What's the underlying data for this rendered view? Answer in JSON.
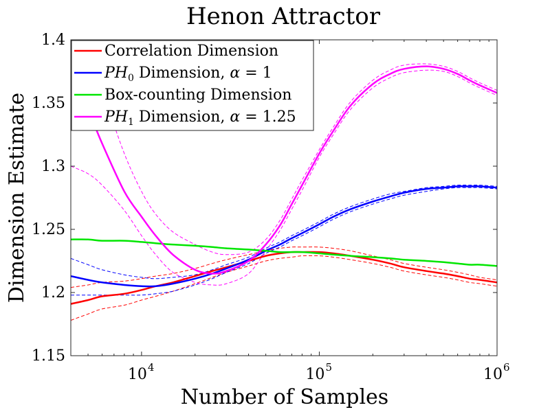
{
  "chart_data": {
    "type": "line",
    "title": "Henon Attractor",
    "xlabel": "Number of Samples",
    "ylabel": "Dimension Estimate",
    "xscale": "log",
    "xlim": [
      4000,
      1000000
    ],
    "ylim": [
      1.15,
      1.4
    ],
    "grid": false,
    "legend_position": "top-left",
    "x_ticks": [
      {
        "base": "10",
        "exp": "4",
        "value": 10000
      },
      {
        "base": "10",
        "exp": "5",
        "value": 100000
      },
      {
        "base": "10",
        "exp": "6",
        "value": 1000000
      }
    ],
    "y_ticks": [
      "1.15",
      "1.2",
      "1.25",
      "1.3",
      "1.35",
      "1.4"
    ],
    "y_tick_values": [
      1.15,
      1.2,
      1.25,
      1.3,
      1.35,
      1.4
    ],
    "x": [
      4000,
      5000,
      6000,
      8000,
      10000,
      12000,
      15000,
      20000,
      25000,
      30000,
      40000,
      50000,
      60000,
      70000,
      80000,
      100000,
      120000,
      150000,
      200000,
      250000,
      300000,
      400000,
      500000,
      600000,
      700000,
      800000,
      1000000
    ],
    "series": [
      {
        "name_parts": [
          "Correlation Dimension"
        ],
        "color": "#ff0000",
        "values": [
          1.191,
          1.194,
          1.197,
          1.199,
          1.202,
          1.205,
          1.208,
          1.213,
          1.217,
          1.22,
          1.225,
          1.229,
          1.231,
          1.232,
          1.232,
          1.232,
          1.231,
          1.229,
          1.226,
          1.223,
          1.22,
          1.217,
          1.215,
          1.213,
          1.211,
          1.21,
          1.208
        ],
        "upper": [
          1.204,
          1.206,
          1.208,
          1.209,
          1.211,
          1.213,
          1.215,
          1.219,
          1.223,
          1.226,
          1.23,
          1.233,
          1.235,
          1.236,
          1.236,
          1.236,
          1.235,
          1.233,
          1.229,
          1.226,
          1.223,
          1.22,
          1.218,
          1.216,
          1.214,
          1.212,
          1.21
        ],
        "lower": [
          1.178,
          1.183,
          1.187,
          1.19,
          1.194,
          1.197,
          1.201,
          1.207,
          1.212,
          1.216,
          1.221,
          1.225,
          1.227,
          1.228,
          1.229,
          1.229,
          1.228,
          1.226,
          1.223,
          1.22,
          1.217,
          1.214,
          1.212,
          1.21,
          1.208,
          1.207,
          1.205
        ]
      },
      {
        "name_parts": [
          "PH",
          "0",
          " Dimension, ",
          "α",
          " = 1"
        ],
        "color": "#0000ff",
        "values": [
          1.213,
          1.21,
          1.208,
          1.206,
          1.205,
          1.205,
          1.207,
          1.211,
          1.215,
          1.219,
          1.226,
          1.233,
          1.238,
          1.243,
          1.247,
          1.254,
          1.26,
          1.266,
          1.272,
          1.276,
          1.279,
          1.282,
          1.283,
          1.284,
          1.284,
          1.284,
          1.283
        ],
        "upper": [
          1.227,
          1.222,
          1.218,
          1.214,
          1.212,
          1.211,
          1.212,
          1.214,
          1.218,
          1.222,
          1.228,
          1.235,
          1.24,
          1.245,
          1.249,
          1.256,
          1.262,
          1.268,
          1.274,
          1.278,
          1.28,
          1.283,
          1.284,
          1.285,
          1.285,
          1.285,
          1.284
        ],
        "lower": [
          1.198,
          1.198,
          1.198,
          1.198,
          1.198,
          1.199,
          1.201,
          1.206,
          1.211,
          1.216,
          1.223,
          1.231,
          1.236,
          1.241,
          1.245,
          1.252,
          1.258,
          1.264,
          1.27,
          1.274,
          1.277,
          1.28,
          1.282,
          1.283,
          1.283,
          1.283,
          1.282
        ]
      },
      {
        "name_parts": [
          "Box-counting Dimension"
        ],
        "color": "#00e600",
        "values": [
          1.242,
          1.242,
          1.241,
          1.241,
          1.24,
          1.239,
          1.238,
          1.237,
          1.236,
          1.235,
          1.234,
          1.233,
          1.232,
          1.232,
          1.232,
          1.231,
          1.23,
          1.229,
          1.228,
          1.227,
          1.226,
          1.225,
          1.224,
          1.223,
          1.222,
          1.222,
          1.221
        ],
        "upper": null,
        "lower": null
      },
      {
        "name_parts": [
          "PH",
          "1",
          " Dimension, ",
          "α",
          " = 1.25"
        ],
        "color": "#ff00ff",
        "values": [
          1.375,
          1.345,
          1.318,
          1.28,
          1.26,
          1.245,
          1.23,
          1.218,
          1.215,
          1.217,
          1.225,
          1.238,
          1.253,
          1.27,
          1.285,
          1.31,
          1.328,
          1.348,
          1.365,
          1.373,
          1.377,
          1.379,
          1.377,
          1.373,
          1.368,
          1.364,
          1.358
        ],
        "upper": [
          1.4,
          1.39,
          1.36,
          1.31,
          1.28,
          1.262,
          1.248,
          1.238,
          1.232,
          1.23,
          1.232,
          1.242,
          1.257,
          1.274,
          1.289,
          1.313,
          1.331,
          1.351,
          1.368,
          1.376,
          1.38,
          1.381,
          1.379,
          1.375,
          1.37,
          1.366,
          1.36
        ],
        "lower": [
          1.3,
          1.294,
          1.285,
          1.265,
          1.245,
          1.23,
          1.216,
          1.208,
          1.206,
          1.207,
          1.215,
          1.233,
          1.249,
          1.266,
          1.281,
          1.307,
          1.325,
          1.345,
          1.362,
          1.37,
          1.374,
          1.376,
          1.375,
          1.371,
          1.366,
          1.362,
          1.356
        ]
      }
    ]
  }
}
